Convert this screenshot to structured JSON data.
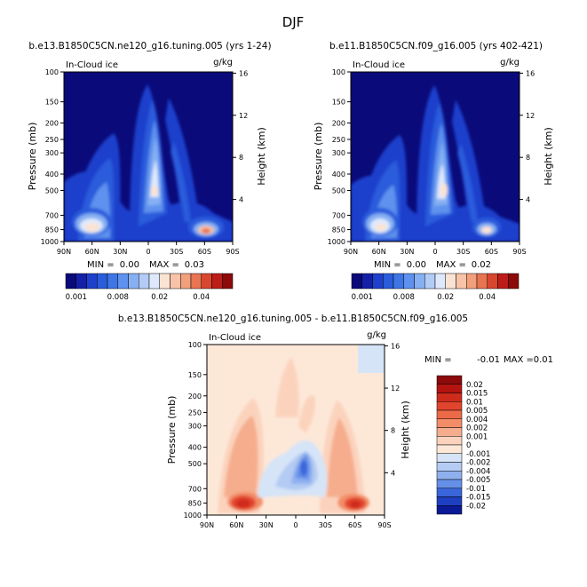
{
  "chart_data": {
    "type": "heatmap",
    "title": "DJF",
    "panels": [
      {
        "id": "top-left",
        "title": "b.e13.B1850C5CN.ne120_g16.tuning.005 (yrs 1-24)",
        "variable": "In-Cloud ice",
        "units": "g/kg",
        "ylabel": "Pressure (mb)",
        "ylabel_right": "Height (km)",
        "xticks": [
          "90N",
          "60N",
          "30N",
          "0",
          "30S",
          "60S",
          "90S"
        ],
        "yticks": [
          "100",
          "150",
          "200",
          "250",
          "300",
          "400",
          "500",
          "700",
          "850",
          "1000"
        ],
        "yticks_right": [
          "16",
          "12",
          "8",
          "4"
        ],
        "min_label": "MIN =",
        "min_value": "0.00",
        "max_label": "MAX =",
        "max_value": "0.03",
        "features": [
          {
            "lat": 8,
            "p": 420,
            "value": 0.03
          },
          {
            "lat": 62,
            "p": 840,
            "value": 0.02
          },
          {
            "lat": -55,
            "p": 850,
            "value": 0.028
          }
        ]
      },
      {
        "id": "top-right",
        "title": "b.e11.B1850C5CN.f09_g16.005 (yrs 402-421)",
        "variable": "In-Cloud ice",
        "units": "g/kg",
        "ylabel": "Pressure (mb)",
        "ylabel_right": "Height (km)",
        "xticks": [
          "90N",
          "60N",
          "30N",
          "0",
          "30S",
          "60S",
          "90S"
        ],
        "yticks": [
          "100",
          "150",
          "200",
          "250",
          "300",
          "400",
          "500",
          "700",
          "850",
          "1000"
        ],
        "yticks_right": [
          "16",
          "12",
          "8",
          "4"
        ],
        "min_label": "MIN =",
        "min_value": "0.00",
        "max_label": "MAX =",
        "max_value": "0.02",
        "features": [
          {
            "lat": 5,
            "p": 480,
            "value": 0.02
          },
          {
            "lat": 62,
            "p": 840,
            "value": 0.015
          },
          {
            "lat": -55,
            "p": 850,
            "value": 0.018
          }
        ]
      },
      {
        "id": "bottom",
        "title": "b.e13.B1850C5CN.ne120_g16.tuning.005 - b.e11.B1850C5CN.f09_g16.005",
        "variable": "In-Cloud ice",
        "units": "g/kg",
        "ylabel": "Pressure (mb)",
        "ylabel_right": "Height (km)",
        "xticks": [
          "90N",
          "60N",
          "30N",
          "0",
          "30S",
          "60S",
          "90S"
        ],
        "yticks": [
          "100",
          "150",
          "200",
          "250",
          "300",
          "400",
          "500",
          "700",
          "850",
          "1000"
        ],
        "yticks_right": [
          "16",
          "12",
          "8",
          "4"
        ],
        "min_label": "MIN =",
        "min_value": "-0.01",
        "max_label": "MAX =",
        "max_value": "0.01",
        "features": [
          {
            "lat": 62,
            "p": 850,
            "value": 0.012
          },
          {
            "lat": -55,
            "p": 850,
            "value": 0.01
          },
          {
            "lat": 50,
            "p": 420,
            "value": 0.004
          },
          {
            "lat": -40,
            "p": 420,
            "value": 0.004
          },
          {
            "lat": 8,
            "p": 210,
            "value": 0.002
          },
          {
            "lat": -5,
            "p": 500,
            "value": -0.008
          },
          {
            "lat": 15,
            "p": 560,
            "value": -0.004
          }
        ]
      }
    ],
    "colorbar_top": {
      "labels": [
        "0.001",
        "0.008",
        "0.02",
        "0.04"
      ],
      "colors": [
        "#0a0a7a",
        "#1420a6",
        "#1e40cc",
        "#2a5cdc",
        "#3f76e6",
        "#5f92ee",
        "#86b0f3",
        "#b3ccf6",
        "#dfe9fb",
        "#fbe3d3",
        "#f8c3a8",
        "#f29f7c",
        "#e97452",
        "#d8462e",
        "#bd1d18",
        "#8c0a0a"
      ]
    },
    "colorbar_diff": {
      "labels": [
        "0.02",
        "0.015",
        "0.01",
        "0.005",
        "0.004",
        "0.002",
        "0.001",
        "0",
        "-0.001",
        "-0.002",
        "-0.004",
        "-0.005",
        "-0.01",
        "-0.015",
        "-0.02"
      ],
      "colors": [
        "#8c0a0a",
        "#b3140f",
        "#cf2b1d",
        "#e2452d",
        "#ec6a48",
        "#f28d68",
        "#f6ad8e",
        "#fbd3bd",
        "#fde8d8",
        "#d6e4f8",
        "#b4cbf3",
        "#8fb0ee",
        "#6590e8",
        "#3a66db",
        "#1d40c2",
        "#0a1a96"
      ]
    },
    "colors": {
      "top_background": "#0a0a7a",
      "diff_background": "#fde8d8"
    }
  }
}
